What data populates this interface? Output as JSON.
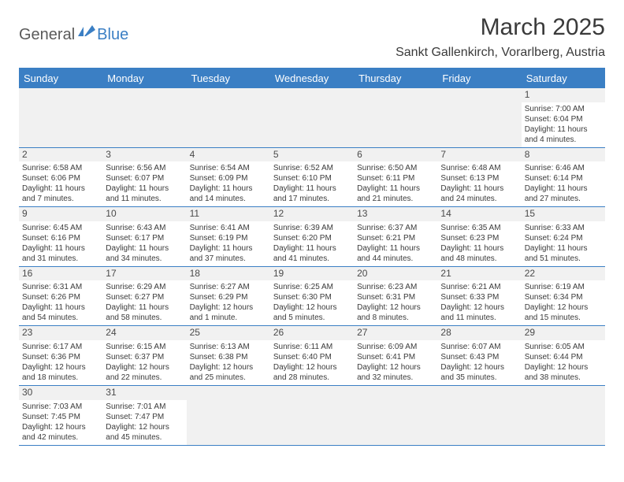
{
  "logo": {
    "text1": "General",
    "text2": "Blue"
  },
  "title": "March 2025",
  "location": "Sankt Gallenkirch, Vorarlberg, Austria",
  "colors": {
    "header_blue": "#3b7fc4",
    "text_gray": "#3a3a3a",
    "cell_header_bg": "#f1f1f1"
  },
  "weekdays": [
    "Sunday",
    "Monday",
    "Tuesday",
    "Wednesday",
    "Thursday",
    "Friday",
    "Saturday"
  ],
  "weeks": [
    [
      null,
      null,
      null,
      null,
      null,
      null,
      {
        "n": "1",
        "sr": "7:00 AM",
        "ss": "6:04 PM",
        "dl": "11 hours and 4 minutes."
      }
    ],
    [
      {
        "n": "2",
        "sr": "6:58 AM",
        "ss": "6:06 PM",
        "dl": "11 hours and 7 minutes."
      },
      {
        "n": "3",
        "sr": "6:56 AM",
        "ss": "6:07 PM",
        "dl": "11 hours and 11 minutes."
      },
      {
        "n": "4",
        "sr": "6:54 AM",
        "ss": "6:09 PM",
        "dl": "11 hours and 14 minutes."
      },
      {
        "n": "5",
        "sr": "6:52 AM",
        "ss": "6:10 PM",
        "dl": "11 hours and 17 minutes."
      },
      {
        "n": "6",
        "sr": "6:50 AM",
        "ss": "6:11 PM",
        "dl": "11 hours and 21 minutes."
      },
      {
        "n": "7",
        "sr": "6:48 AM",
        "ss": "6:13 PM",
        "dl": "11 hours and 24 minutes."
      },
      {
        "n": "8",
        "sr": "6:46 AM",
        "ss": "6:14 PM",
        "dl": "11 hours and 27 minutes."
      }
    ],
    [
      {
        "n": "9",
        "sr": "6:45 AM",
        "ss": "6:16 PM",
        "dl": "11 hours and 31 minutes."
      },
      {
        "n": "10",
        "sr": "6:43 AM",
        "ss": "6:17 PM",
        "dl": "11 hours and 34 minutes."
      },
      {
        "n": "11",
        "sr": "6:41 AM",
        "ss": "6:19 PM",
        "dl": "11 hours and 37 minutes."
      },
      {
        "n": "12",
        "sr": "6:39 AM",
        "ss": "6:20 PM",
        "dl": "11 hours and 41 minutes."
      },
      {
        "n": "13",
        "sr": "6:37 AM",
        "ss": "6:21 PM",
        "dl": "11 hours and 44 minutes."
      },
      {
        "n": "14",
        "sr": "6:35 AM",
        "ss": "6:23 PM",
        "dl": "11 hours and 48 minutes."
      },
      {
        "n": "15",
        "sr": "6:33 AM",
        "ss": "6:24 PM",
        "dl": "11 hours and 51 minutes."
      }
    ],
    [
      {
        "n": "16",
        "sr": "6:31 AM",
        "ss": "6:26 PM",
        "dl": "11 hours and 54 minutes."
      },
      {
        "n": "17",
        "sr": "6:29 AM",
        "ss": "6:27 PM",
        "dl": "11 hours and 58 minutes."
      },
      {
        "n": "18",
        "sr": "6:27 AM",
        "ss": "6:29 PM",
        "dl": "12 hours and 1 minute."
      },
      {
        "n": "19",
        "sr": "6:25 AM",
        "ss": "6:30 PM",
        "dl": "12 hours and 5 minutes."
      },
      {
        "n": "20",
        "sr": "6:23 AM",
        "ss": "6:31 PM",
        "dl": "12 hours and 8 minutes."
      },
      {
        "n": "21",
        "sr": "6:21 AM",
        "ss": "6:33 PM",
        "dl": "12 hours and 11 minutes."
      },
      {
        "n": "22",
        "sr": "6:19 AM",
        "ss": "6:34 PM",
        "dl": "12 hours and 15 minutes."
      }
    ],
    [
      {
        "n": "23",
        "sr": "6:17 AM",
        "ss": "6:36 PM",
        "dl": "12 hours and 18 minutes."
      },
      {
        "n": "24",
        "sr": "6:15 AM",
        "ss": "6:37 PM",
        "dl": "12 hours and 22 minutes."
      },
      {
        "n": "25",
        "sr": "6:13 AM",
        "ss": "6:38 PM",
        "dl": "12 hours and 25 minutes."
      },
      {
        "n": "26",
        "sr": "6:11 AM",
        "ss": "6:40 PM",
        "dl": "12 hours and 28 minutes."
      },
      {
        "n": "27",
        "sr": "6:09 AM",
        "ss": "6:41 PM",
        "dl": "12 hours and 32 minutes."
      },
      {
        "n": "28",
        "sr": "6:07 AM",
        "ss": "6:43 PM",
        "dl": "12 hours and 35 minutes."
      },
      {
        "n": "29",
        "sr": "6:05 AM",
        "ss": "6:44 PM",
        "dl": "12 hours and 38 minutes."
      }
    ],
    [
      {
        "n": "30",
        "sr": "7:03 AM",
        "ss": "7:45 PM",
        "dl": "12 hours and 42 minutes."
      },
      {
        "n": "31",
        "sr": "7:01 AM",
        "ss": "7:47 PM",
        "dl": "12 hours and 45 minutes."
      },
      null,
      null,
      null,
      null,
      null
    ]
  ],
  "labels": {
    "sunrise": "Sunrise:",
    "sunset": "Sunset:",
    "daylight": "Daylight:"
  }
}
